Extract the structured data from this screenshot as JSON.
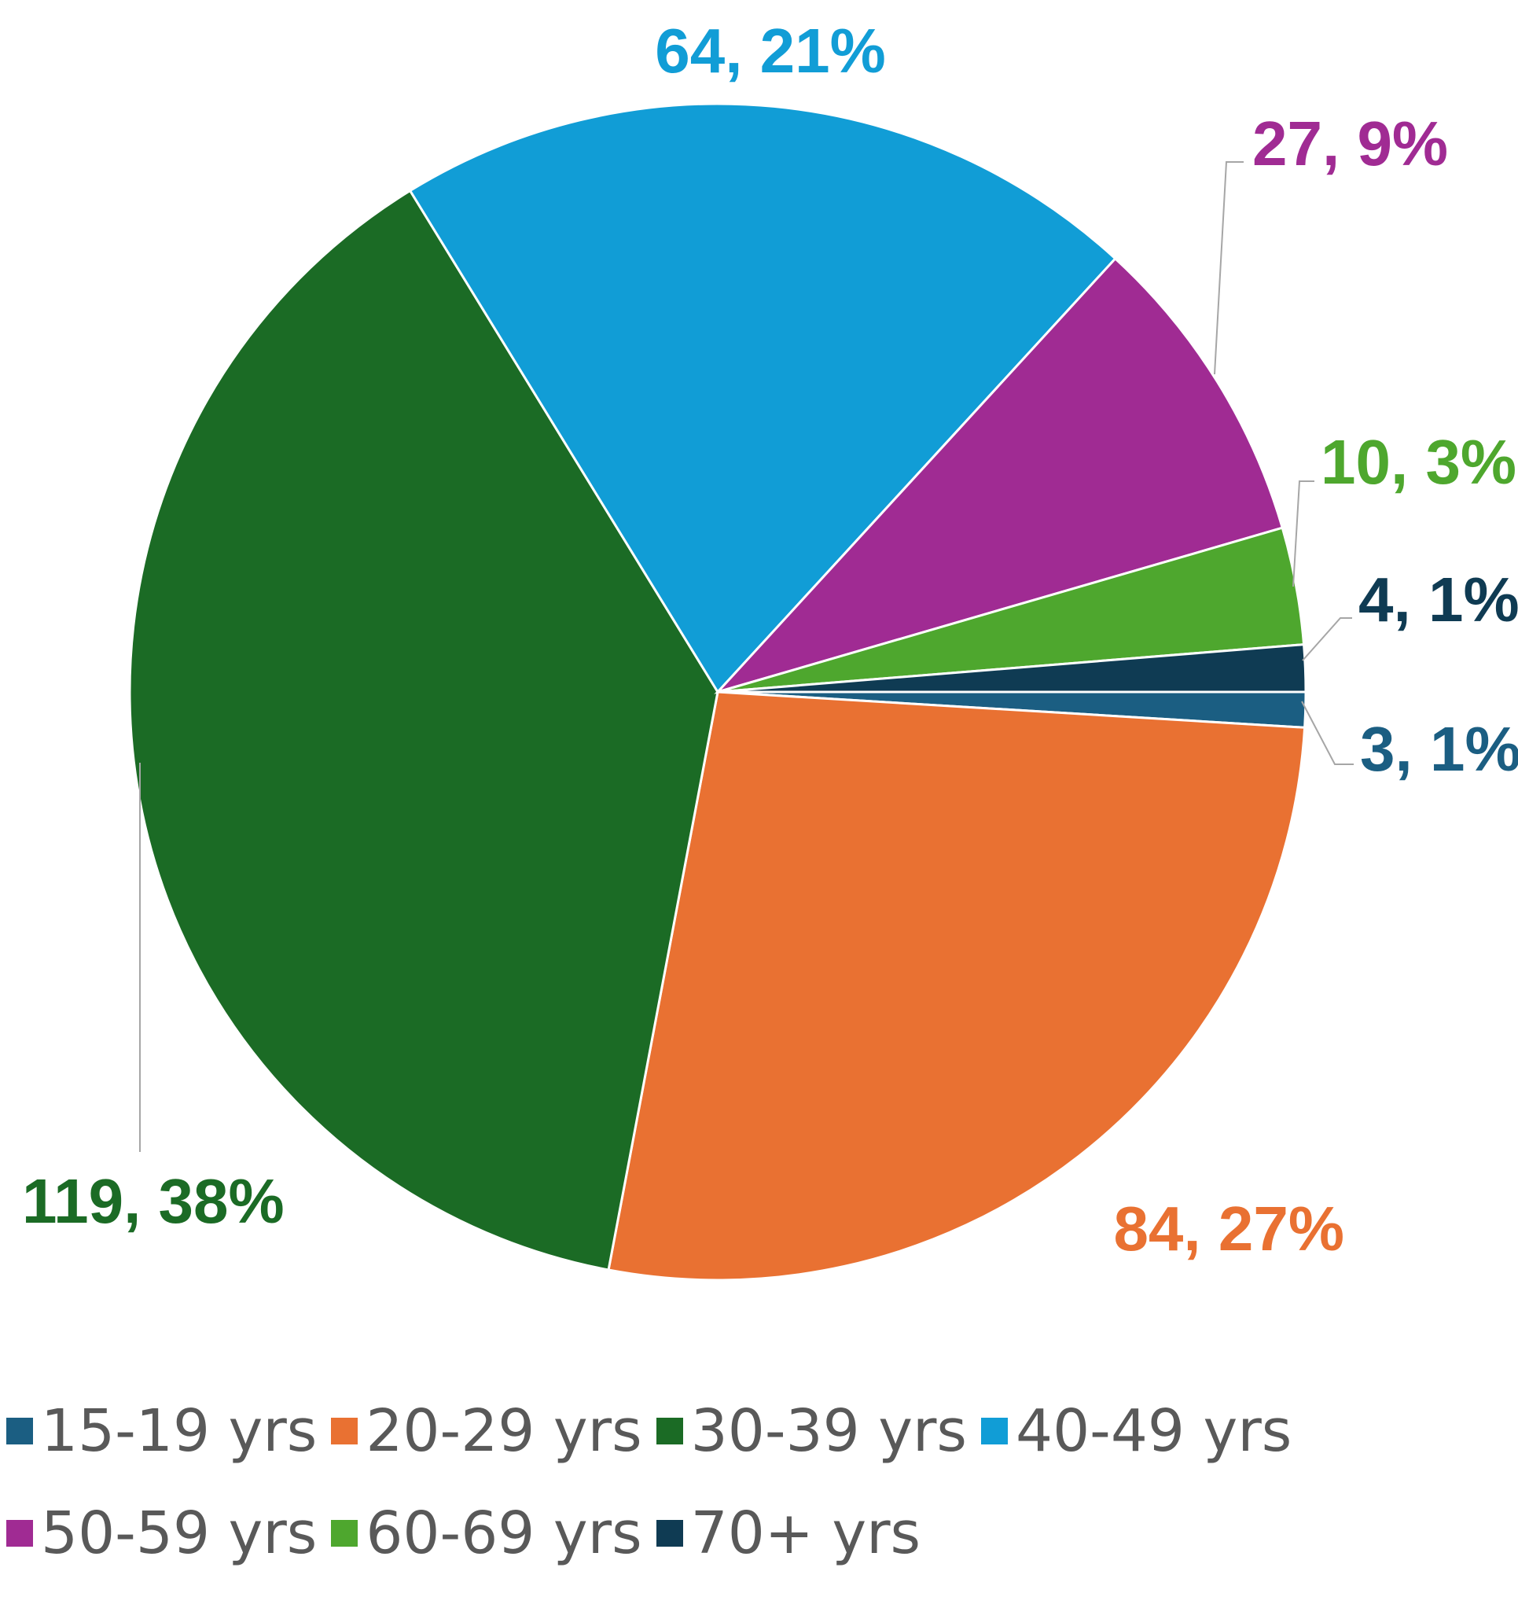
{
  "chart_data": {
    "type": "pie",
    "categories": [
      "15-19 yrs",
      "20-29 yrs",
      "30-39 yrs",
      "40-49 yrs",
      "50-59 yrs",
      "60-69 yrs",
      "70+ yrs"
    ],
    "values": [
      3,
      84,
      119,
      64,
      27,
      10,
      4
    ],
    "percent_labels": [
      "1%",
      "27%",
      "38%",
      "21%",
      "9%",
      "3%",
      "1%"
    ],
    "data_labels": [
      "3, 1%",
      "84, 27%",
      "119, 38%",
      "64, 21%",
      "27, 9%",
      "10, 3%",
      "4, 1%"
    ],
    "colors": [
      "#1b5e82",
      "#e97132",
      "#1b6b25",
      "#119dd6",
      "#a02b93",
      "#4ea72e",
      "#0f3b53"
    ],
    "legend_position": "bottom",
    "start": "3 o'clock, clockwise"
  },
  "legend": {
    "rows": [
      [
        "15-19 yrs",
        "20-29 yrs",
        "30-39 yrs",
        "40-49 yrs"
      ],
      [
        "50-59 yrs",
        "60-69 yrs",
        "70+ yrs"
      ]
    ]
  }
}
